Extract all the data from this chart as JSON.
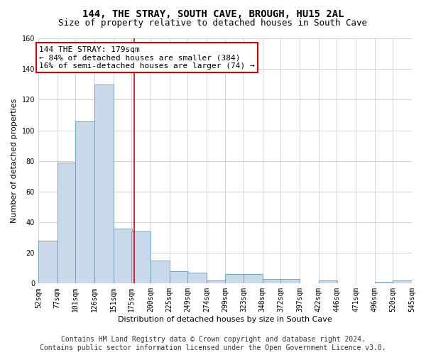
{
  "title": "144, THE STRAY, SOUTH CAVE, BROUGH, HU15 2AL",
  "subtitle": "Size of property relative to detached houses in South Cave",
  "xlabel": "Distribution of detached houses by size in South Cave",
  "ylabel": "Number of detached properties",
  "bar_color": "#c9d9ea",
  "bar_edge_color": "#6699bb",
  "background_color": "#ffffff",
  "grid_color": "#c8d0dc",
  "vline_x": 179,
  "vline_color": "#cc0000",
  "annotation_text": "144 THE STRAY: 179sqm\n← 84% of detached houses are smaller (384)\n16% of semi-detached houses are larger (74) →",
  "annotation_box_color": "#ffffff",
  "annotation_box_edge": "#cc0000",
  "bins_left": [
    52,
    77,
    101,
    126,
    151,
    175,
    200,
    225,
    249,
    274,
    299,
    323,
    348,
    372,
    397,
    422,
    446,
    471,
    496,
    520
  ],
  "bin_width": 25,
  "bar_heights": [
    28,
    79,
    106,
    130,
    36,
    34,
    15,
    8,
    7,
    2,
    6,
    6,
    3,
    3,
    0,
    2,
    0,
    0,
    1,
    2
  ],
  "ylim": [
    0,
    160
  ],
  "yticks": [
    0,
    20,
    40,
    60,
    80,
    100,
    120,
    140,
    160
  ],
  "xlim": [
    52,
    545
  ],
  "tick_labels": [
    "52sqm",
    "77sqm",
    "101sqm",
    "126sqm",
    "151sqm",
    "175sqm",
    "200sqm",
    "225sqm",
    "249sqm",
    "274sqm",
    "299sqm",
    "323sqm",
    "348sqm",
    "372sqm",
    "397sqm",
    "422sqm",
    "446sqm",
    "471sqm",
    "496sqm",
    "520sqm",
    "545sqm"
  ],
  "footer_line1": "Contains HM Land Registry data © Crown copyright and database right 2024.",
  "footer_line2": "Contains public sector information licensed under the Open Government Licence v3.0.",
  "title_fontsize": 10,
  "subtitle_fontsize": 9,
  "axis_label_fontsize": 8,
  "tick_fontsize": 7,
  "annotation_fontsize": 8,
  "footer_fontsize": 7
}
